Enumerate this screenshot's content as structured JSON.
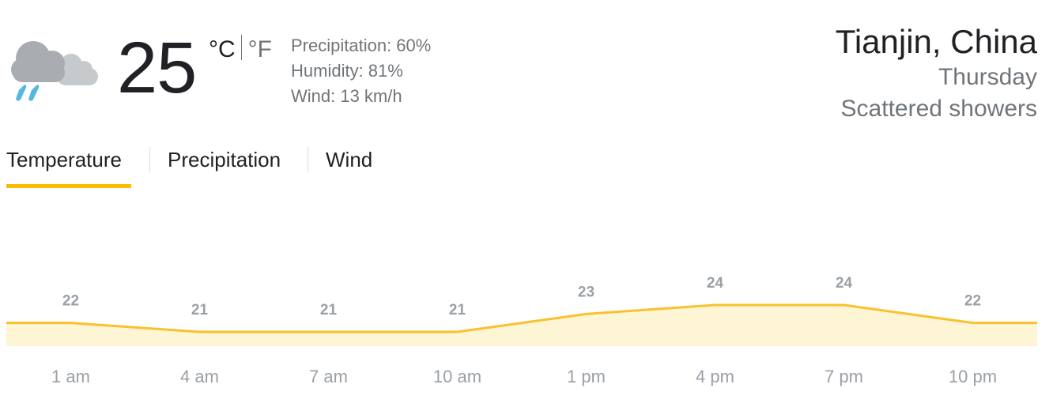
{
  "current": {
    "icon": "rain-cloud-icon",
    "temperature": "25",
    "unit_c": "°C",
    "unit_f": "°F",
    "precipitation": "Precipitation: 60%",
    "humidity": "Humidity: 81%",
    "wind": "Wind: 13 km/h"
  },
  "location": {
    "city": "Tianjin, China",
    "day": "Thursday",
    "condition": "Scattered showers"
  },
  "tabs": [
    {
      "label": "Temperature",
      "selected": true
    },
    {
      "label": "Precipitation",
      "selected": false
    },
    {
      "label": "Wind",
      "selected": false
    }
  ],
  "colors": {
    "accent": "#fbbc04",
    "line": "#fbc02d",
    "fill": "#fef5d5",
    "muted_text": "#70757a",
    "chart_text": "#9aa0a6"
  },
  "chart_data": {
    "type": "area",
    "x": [
      "1 am",
      "4 am",
      "7 am",
      "10 am",
      "1 pm",
      "4 pm",
      "7 pm",
      "10 pm"
    ],
    "values": [
      22,
      21,
      21,
      21,
      23,
      24,
      24,
      22
    ],
    "xlabel": "",
    "ylabel": "",
    "grid": false
  }
}
